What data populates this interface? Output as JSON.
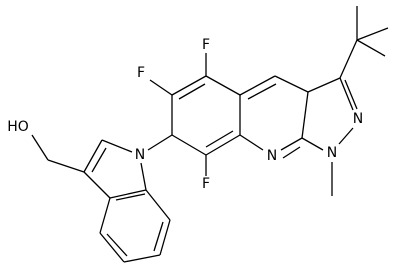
{
  "atom_labels": [
    "F",
    "F",
    "F",
    "N",
    "N",
    "N",
    "N",
    "HO"
  ]
}
